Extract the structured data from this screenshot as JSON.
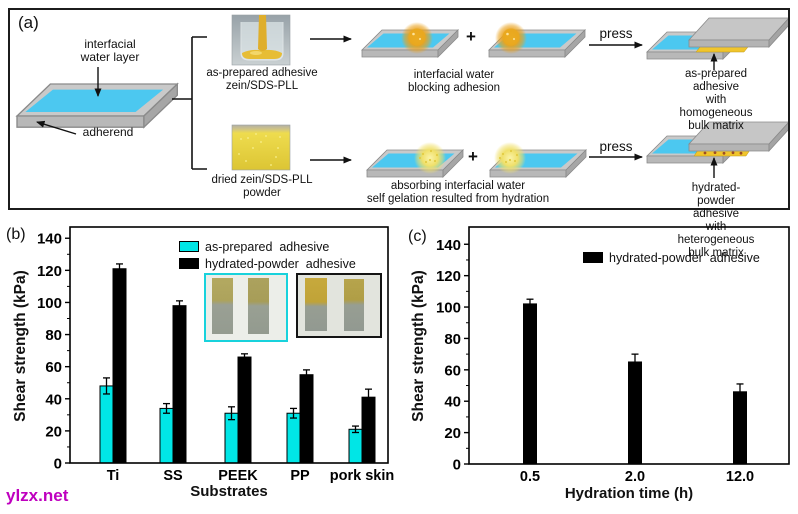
{
  "watermark": {
    "text": "ylzx.net",
    "color": "#bf00bf"
  },
  "panel_a": {
    "label": "(a)",
    "water_layer_label": "interfacial\nwater layer",
    "adherend_label": "adherend",
    "vial_caption": "as-prepared adhesive\nzein/SDS-PLL",
    "powder_caption": "dried zein/SDS-PLL\npowder",
    "plus": "+",
    "row1": {
      "press": "press",
      "step_caption": "interfacial water\nblocking adhesion",
      "result_caption": "as-prepared adhesive\nwith homogeneous bulk matrix"
    },
    "row2": {
      "press": "press",
      "step_caption": "absorbing interfacial water\nself gelation resulted from hydration",
      "result_caption": "hydrated-powder adhesive\nwith heterogeneous bulk matrix"
    },
    "colors": {
      "adherend_top": "#4cc8f0",
      "adhesive_yellow": "#f1c52c",
      "slab_gray": "#c9c9c9"
    }
  },
  "chart_data": [
    {
      "id": "b",
      "type": "bar",
      "panel_label": "(b)",
      "categories": [
        "Ti",
        "SS",
        "PEEK",
        "PP",
        "pork skin"
      ],
      "series": [
        {
          "name": "as-prepared  adhesive",
          "color": "#00e6e6",
          "values": [
            48,
            34,
            31,
            31,
            21
          ],
          "errors": [
            5,
            3,
            4,
            3,
            2
          ]
        },
        {
          "name": "hydrated-powder  adhesive",
          "color": "#000000",
          "values": [
            121,
            98,
            66,
            55,
            41
          ],
          "errors": [
            3,
            3,
            2,
            3,
            5
          ]
        }
      ],
      "xlabel": "Substrates",
      "ylabel": "Shear strength (kPa)",
      "ylim": [
        0,
        147
      ],
      "yticks": [
        0,
        20,
        40,
        60,
        80,
        100,
        120,
        140
      ],
      "grid": false,
      "legend_position": "top-inside"
    },
    {
      "id": "c",
      "type": "bar",
      "panel_label": "(c)",
      "categories": [
        "0.5",
        "2.0",
        "12.0"
      ],
      "series": [
        {
          "name": "hydrated-powder  adhesive",
          "color": "#000000",
          "values": [
            102,
            65,
            46
          ],
          "errors": [
            3,
            5,
            5
          ]
        }
      ],
      "xlabel": "Hydration time (h)",
      "ylabel": "Shear strength (kPa)",
      "ylim": [
        0,
        151
      ],
      "yticks": [
        0,
        20,
        40,
        60,
        80,
        100,
        120,
        140
      ],
      "grid": false,
      "legend_position": "top-inside"
    }
  ]
}
